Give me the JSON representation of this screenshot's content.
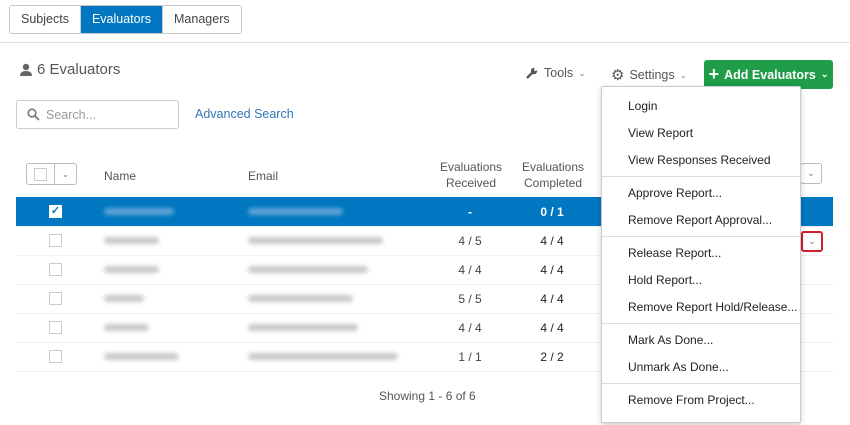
{
  "tabs": [
    {
      "label": "Subjects",
      "active": false
    },
    {
      "label": "Evaluators",
      "active": true
    },
    {
      "label": "Managers",
      "active": false
    }
  ],
  "header": {
    "title": "6 Evaluators",
    "icon": "person-icon"
  },
  "search": {
    "placeholder": "Search...",
    "value": "",
    "advanced_label": "Advanced Search"
  },
  "toolbar": {
    "tools_label": "Tools",
    "settings_label": "Settings",
    "add_label": "Add Evaluators"
  },
  "colors": {
    "accent": "#0077c0",
    "add_button": "#1f9d48",
    "highlight": "#d0202a"
  },
  "table": {
    "columns": [
      "Name",
      "Email",
      "Evaluations Received",
      "Evaluations Completed"
    ],
    "rows": [
      {
        "selected": true,
        "received": "-",
        "completed": "0 / 1"
      },
      {
        "selected": false,
        "received": "4 / 5",
        "completed": "4 / 4"
      },
      {
        "selected": false,
        "received": "4 / 4",
        "completed": "4 / 4"
      },
      {
        "selected": false,
        "received": "5 / 5",
        "completed": "4 / 4"
      },
      {
        "selected": false,
        "received": "4 / 4",
        "completed": "4 / 4"
      },
      {
        "selected": false,
        "received": "1 / 1",
        "completed": "2 / 2"
      }
    ]
  },
  "footer": "Showing 1 - 6 of 6",
  "menu": {
    "groups": [
      [
        "Login",
        "View Report",
        "View Responses Received"
      ],
      [
        "Approve Report...",
        "Remove Report Approval..."
      ],
      [
        "Release Report...",
        "Hold Report...",
        "Remove Report Hold/Release..."
      ],
      [
        "Mark As Done...",
        "Unmark As Done..."
      ],
      [
        "Remove From Project..."
      ]
    ]
  }
}
